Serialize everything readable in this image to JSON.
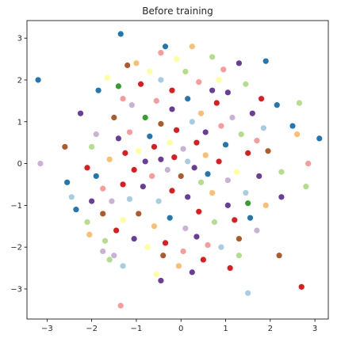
{
  "chart_data": {
    "type": "scatter",
    "title": "Before training",
    "xlabel": "",
    "ylabel": "",
    "xlim": [
      -3.45,
      3.3
    ],
    "ylim": [
      -3.72,
      3.42
    ],
    "xticks": [
      -3,
      -2,
      -1,
      0,
      1,
      2,
      3
    ],
    "yticks": [
      -3,
      -2,
      -1,
      0,
      1,
      2,
      3
    ],
    "xtick_labels": [
      "−3",
      "−2",
      "−1",
      "0",
      "1",
      "2",
      "3"
    ],
    "ytick_labels": [
      "−3",
      "−2",
      "−1",
      "0",
      "1",
      "2",
      "3"
    ],
    "grid": false,
    "legend": "none",
    "colormap": "Paired",
    "palette": [
      "#a6cee3",
      "#1f78b4",
      "#b2df8a",
      "#33a02c",
      "#fb9a99",
      "#e31a1c",
      "#fdbf6f",
      "#ff7f00",
      "#cab2d6",
      "#6a3d9a",
      "#ffff99",
      "#b15928"
    ],
    "points": [
      {
        "x": -3.2,
        "y": 2.0,
        "c": "#1f78b4"
      },
      {
        "x": -3.15,
        "y": 0.0,
        "c": "#cab2d6"
      },
      {
        "x": -1.35,
        "y": 3.1,
        "c": "#1f78b4"
      },
      {
        "x": -1.35,
        "y": -3.4,
        "c": "#fb9a99"
      },
      {
        "x": 1.5,
        "y": -3.1,
        "c": "#a6cee3"
      },
      {
        "x": 2.7,
        "y": -2.95,
        "c": "#e31a1c"
      },
      {
        "x": 3.1,
        "y": 0.6,
        "c": "#1f78b4"
      },
      {
        "x": 2.85,
        "y": 0.0,
        "c": "#fb9a99"
      },
      {
        "x": 2.8,
        "y": -0.55,
        "c": "#b2df8a"
      },
      {
        "x": 2.65,
        "y": 1.45,
        "c": "#b2df8a"
      },
      {
        "x": 2.5,
        "y": 0.9,
        "c": "#1f78b4"
      },
      {
        "x": 2.6,
        "y": 0.7,
        "c": "#fdbf6f"
      },
      {
        "x": 2.2,
        "y": -2.2,
        "c": "#b15928"
      },
      {
        "x": 2.25,
        "y": -0.8,
        "c": "#6a3d9a"
      },
      {
        "x": 2.25,
        "y": -0.2,
        "c": "#b2df8a"
      },
      {
        "x": 2.15,
        "y": 1.4,
        "c": "#1f78b4"
      },
      {
        "x": 1.9,
        "y": 2.45,
        "c": "#1f78b4"
      },
      {
        "x": 1.8,
        "y": 1.55,
        "c": "#e31a1c"
      },
      {
        "x": 1.7,
        "y": -1.6,
        "c": "#cab2d6"
      },
      {
        "x": 1.3,
        "y": -2.2,
        "c": "#b2df8a"
      },
      {
        "x": 1.1,
        "y": -2.5,
        "c": "#e31a1c"
      },
      {
        "x": 1.3,
        "y": 2.4,
        "c": "#6a3d9a"
      },
      {
        "x": 0.25,
        "y": 2.8,
        "c": "#fdbf6f"
      },
      {
        "x": -0.35,
        "y": 2.8,
        "c": "#1f78b4"
      },
      {
        "x": -0.45,
        "y": 2.65,
        "c": "#fb9a99"
      },
      {
        "x": 0.7,
        "y": 2.55,
        "c": "#b2df8a"
      },
      {
        "x": -0.55,
        "y": -2.65,
        "c": "#ffff99"
      },
      {
        "x": -0.45,
        "y": -2.8,
        "c": "#6a3d9a"
      },
      {
        "x": 0.25,
        "y": -2.6,
        "c": "#6a3d9a"
      },
      {
        "x": -1.3,
        "y": -2.45,
        "c": "#a6cee3"
      },
      {
        "x": -1.5,
        "y": -2.2,
        "c": "#cab2d6"
      },
      {
        "x": -1.75,
        "y": -2.1,
        "c": "#cab2d6"
      },
      {
        "x": -1.6,
        "y": -2.3,
        "c": "#b2df8a"
      },
      {
        "x": -2.6,
        "y": 0.4,
        "c": "#b15928"
      },
      {
        "x": -2.55,
        "y": -0.45,
        "c": "#1f78b4"
      },
      {
        "x": -2.45,
        "y": -0.8,
        "c": "#a6cee3"
      },
      {
        "x": -2.35,
        "y": -1.1,
        "c": "#1f78b4"
      },
      {
        "x": -2.1,
        "y": -1.4,
        "c": "#b2df8a"
      },
      {
        "x": -2.05,
        "y": -1.7,
        "c": "#fdbf6f"
      },
      {
        "x": -2.25,
        "y": 1.2,
        "c": "#6a3d9a"
      },
      {
        "x": -2.0,
        "y": 0.4,
        "c": "#b2df8a"
      },
      {
        "x": -1.85,
        "y": 1.75,
        "c": "#1f78b4"
      },
      {
        "x": -1.9,
        "y": -0.3,
        "c": "#1f78b4"
      },
      {
        "x": -1.75,
        "y": -0.6,
        "c": "#fb9a99"
      },
      {
        "x": -1.65,
        "y": 2.05,
        "c": "#ffff99"
      },
      {
        "x": -1.4,
        "y": 1.85,
        "c": "#33a02c"
      },
      {
        "x": -1.2,
        "y": 2.35,
        "c": "#b15928"
      },
      {
        "x": -1.0,
        "y": 2.4,
        "c": "#fdbf6f"
      },
      {
        "x": -0.7,
        "y": 2.2,
        "c": "#ffff99"
      },
      {
        "x": -0.9,
        "y": 1.9,
        "c": "#e31a1c"
      },
      {
        "x": -0.45,
        "y": 2.0,
        "c": "#a6cee3"
      },
      {
        "x": 0.1,
        "y": 2.2,
        "c": "#b2df8a"
      },
      {
        "x": 0.4,
        "y": 1.95,
        "c": "#fb9a99"
      },
      {
        "x": 0.85,
        "y": 2.0,
        "c": "#ffff99"
      },
      {
        "x": 1.05,
        "y": 1.7,
        "c": "#6a3d9a"
      },
      {
        "x": 1.45,
        "y": 1.9,
        "c": "#b2df8a"
      },
      {
        "x": 1.6,
        "y": 1.2,
        "c": "#6a3d9a"
      },
      {
        "x": 1.85,
        "y": 0.85,
        "c": "#a6cee3"
      },
      {
        "x": 1.95,
        "y": 0.3,
        "c": "#b15928"
      },
      {
        "x": 1.75,
        "y": -0.3,
        "c": "#6a3d9a"
      },
      {
        "x": 1.9,
        "y": -1.0,
        "c": "#fdbf6f"
      },
      {
        "x": 1.55,
        "y": -1.3,
        "c": "#1f78b4"
      },
      {
        "x": 1.3,
        "y": -1.8,
        "c": "#b15928"
      },
      {
        "x": 0.9,
        "y": -2.0,
        "c": "#a6cee3"
      },
      {
        "x": 0.5,
        "y": -2.3,
        "c": "#e31a1c"
      },
      {
        "x": 0.05,
        "y": -2.1,
        "c": "#fb9a99"
      },
      {
        "x": -0.4,
        "y": -2.2,
        "c": "#b15928"
      },
      {
        "x": -0.75,
        "y": -2.0,
        "c": "#ffff99"
      },
      {
        "x": -1.05,
        "y": -1.8,
        "c": "#6a3d9a"
      },
      {
        "x": -1.45,
        "y": -1.6,
        "c": "#e31a1c"
      },
      {
        "x": -1.75,
        "y": -1.2,
        "c": "#b15928"
      },
      {
        "x": -1.55,
        "y": -0.9,
        "c": "#cab2d6"
      },
      {
        "x": -1.3,
        "y": -0.5,
        "c": "#e31a1c"
      },
      {
        "x": -1.6,
        "y": 0.1,
        "c": "#fdbf6f"
      },
      {
        "x": -1.4,
        "y": 0.6,
        "c": "#6a3d9a"
      },
      {
        "x": -1.5,
        "y": 1.1,
        "c": "#b15928"
      },
      {
        "x": -1.1,
        "y": 1.4,
        "c": "#cab2d6"
      },
      {
        "x": -0.8,
        "y": 1.1,
        "c": "#33a02c"
      },
      {
        "x": -0.55,
        "y": 1.5,
        "c": "#fb9a99"
      },
      {
        "x": -0.2,
        "y": 1.3,
        "c": "#6a3d9a"
      },
      {
        "x": 0.15,
        "y": 1.55,
        "c": "#1f78b4"
      },
      {
        "x": 0.45,
        "y": 1.2,
        "c": "#fdbf6f"
      },
      {
        "x": 0.8,
        "y": 1.45,
        "c": "#e31a1c"
      },
      {
        "x": 1.15,
        "y": 1.1,
        "c": "#cab2d6"
      },
      {
        "x": 1.35,
        "y": 0.7,
        "c": "#b2df8a"
      },
      {
        "x": 1.5,
        "y": 0.25,
        "c": "#e31a1c"
      },
      {
        "x": 1.25,
        "y": -0.2,
        "c": "#ffff99"
      },
      {
        "x": 1.45,
        "y": -0.7,
        "c": "#a6cee3"
      },
      {
        "x": 1.05,
        "y": -1.0,
        "c": "#6a3d9a"
      },
      {
        "x": 0.75,
        "y": -1.4,
        "c": "#b2df8a"
      },
      {
        "x": 0.4,
        "y": -1.15,
        "c": "#e31a1c"
      },
      {
        "x": 0.1,
        "y": -1.55,
        "c": "#cab2d6"
      },
      {
        "x": -0.25,
        "y": -1.3,
        "c": "#1f78b4"
      },
      {
        "x": -0.6,
        "y": -1.5,
        "c": "#fdbf6f"
      },
      {
        "x": -0.95,
        "y": -1.2,
        "c": "#b15928"
      },
      {
        "x": -1.15,
        "y": -0.85,
        "c": "#a6cee3"
      },
      {
        "x": -0.85,
        "y": -0.55,
        "c": "#6a3d9a"
      },
      {
        "x": -1.05,
        "y": -0.15,
        "c": "#e31a1c"
      },
      {
        "x": -0.95,
        "y": 0.3,
        "c": "#ffff99"
      },
      {
        "x": -1.15,
        "y": 0.75,
        "c": "#fb9a99"
      },
      {
        "x": -0.7,
        "y": 0.65,
        "c": "#1f78b4"
      },
      {
        "x": -0.45,
        "y": 0.95,
        "c": "#b15928"
      },
      {
        "x": -0.1,
        "y": 0.8,
        "c": "#e31a1c"
      },
      {
        "x": 0.25,
        "y": 1.0,
        "c": "#a6cee3"
      },
      {
        "x": 0.55,
        "y": 0.75,
        "c": "#6a3d9a"
      },
      {
        "x": 0.9,
        "y": 0.9,
        "c": "#fb9a99"
      },
      {
        "x": 1.0,
        "y": 0.45,
        "c": "#1f78b4"
      },
      {
        "x": 0.85,
        "y": 0.05,
        "c": "#e31a1c"
      },
      {
        "x": 1.05,
        "y": -0.4,
        "c": "#cab2d6"
      },
      {
        "x": 0.7,
        "y": -0.7,
        "c": "#fdbf6f"
      },
      {
        "x": 0.45,
        "y": -0.45,
        "c": "#b2df8a"
      },
      {
        "x": 0.15,
        "y": -0.8,
        "c": "#6a3d9a"
      },
      {
        "x": -0.2,
        "y": -0.65,
        "c": "#e31a1c"
      },
      {
        "x": -0.5,
        "y": -0.9,
        "c": "#a6cee3"
      },
      {
        "x": -0.65,
        "y": -0.3,
        "c": "#fb9a99"
      },
      {
        "x": -0.45,
        "y": 0.1,
        "c": "#6a3d9a"
      },
      {
        "x": -0.6,
        "y": 0.4,
        "c": "#e31a1c"
      },
      {
        "x": -0.25,
        "y": 0.5,
        "c": "#ffff99"
      },
      {
        "x": 0.05,
        "y": 0.35,
        "c": "#cab2d6"
      },
      {
        "x": 0.35,
        "y": 0.5,
        "c": "#e31a1c"
      },
      {
        "x": 0.55,
        "y": 0.2,
        "c": "#fdbf6f"
      },
      {
        "x": 0.3,
        "y": -0.1,
        "c": "#6a3d9a"
      },
      {
        "x": 0.6,
        "y": -0.25,
        "c": "#1f78b4"
      },
      {
        "x": 0.0,
        "y": -0.3,
        "c": "#b15928"
      },
      {
        "x": -0.3,
        "y": -0.15,
        "c": "#cab2d6"
      },
      {
        "x": -0.15,
        "y": 0.15,
        "c": "#e31a1c"
      },
      {
        "x": 0.15,
        "y": 0.05,
        "c": "#a6cee3"
      },
      {
        "x": -0.8,
        "y": 0.05,
        "c": "#6a3d9a"
      },
      {
        "x": -1.25,
        "y": 0.25,
        "c": "#e31a1c"
      },
      {
        "x": -1.9,
        "y": 0.7,
        "c": "#cab2d6"
      },
      {
        "x": -2.1,
        "y": -0.1,
        "c": "#e31a1c"
      },
      {
        "x": -2.0,
        "y": -0.9,
        "c": "#6a3d9a"
      },
      {
        "x": -1.3,
        "y": -1.35,
        "c": "#ffff99"
      },
      {
        "x": -0.35,
        "y": -1.9,
        "c": "#e31a1c"
      },
      {
        "x": 0.35,
        "y": -1.75,
        "c": "#6a3d9a"
      },
      {
        "x": 1.2,
        "y": -1.35,
        "c": "#e31a1c"
      },
      {
        "x": 1.7,
        "y": 0.55,
        "c": "#fb9a99"
      },
      {
        "x": 0.7,
        "y": 1.75,
        "c": "#6a3d9a"
      },
      {
        "x": -0.2,
        "y": 1.75,
        "c": "#e31a1c"
      },
      {
        "x": -1.3,
        "y": 1.55,
        "c": "#fb9a99"
      },
      {
        "x": -0.1,
        "y": 2.5,
        "c": "#ffff99"
      },
      {
        "x": 0.95,
        "y": 2.25,
        "c": "#fb9a99"
      },
      {
        "x": -1.7,
        "y": -1.85,
        "c": "#b2df8a"
      },
      {
        "x": 1.5,
        "y": -0.95,
        "c": "#33a02c"
      },
      {
        "x": -0.05,
        "y": -2.45,
        "c": "#fdbf6f"
      },
      {
        "x": 0.6,
        "y": -1.95,
        "c": "#fb9a99"
      }
    ]
  }
}
